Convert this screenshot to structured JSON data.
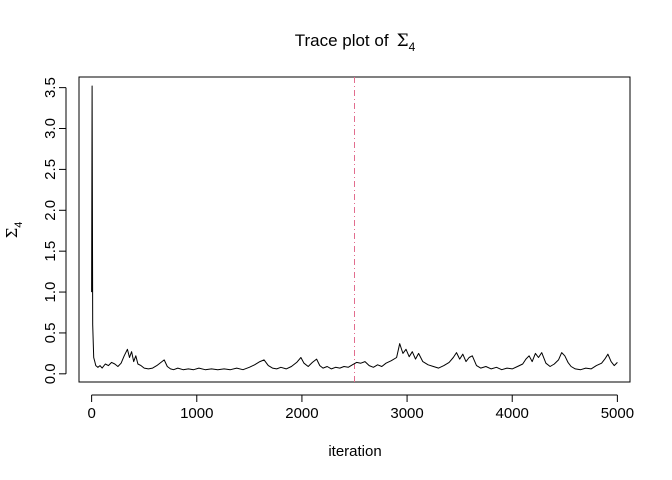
{
  "chart_data": {
    "type": "line",
    "title": "Trace plot of",
    "title_symbol": "Σ",
    "title_subscript": "4",
    "xlabel": "iteration",
    "ylabel_symbol": "Σ",
    "ylabel_subscript": "4",
    "xlim": [
      -120,
      5120
    ],
    "ylim": [
      -0.1,
      3.63
    ],
    "xticks": [
      0,
      1000,
      2000,
      3000,
      4000,
      5000
    ],
    "xtick_labels": [
      "0",
      "1000",
      "2000",
      "3000",
      "4000",
      "5000"
    ],
    "yticks": [
      0.0,
      0.5,
      1.0,
      1.5,
      2.0,
      2.5,
      3.0,
      3.5
    ],
    "ytick_labels": [
      "0.0",
      "0.5",
      "1.0",
      "1.5",
      "2.0",
      "2.5",
      "3.0",
      "3.5"
    ],
    "grid": false,
    "line_color": "#000000",
    "vline": {
      "x": 2500,
      "color": "#e26d8e",
      "style": "dashdot"
    },
    "series": [
      {
        "x": [
          0,
          5,
          10,
          20,
          30,
          40,
          50,
          60,
          80,
          100,
          130,
          160,
          190,
          220,
          250,
          280,
          310,
          340,
          360,
          380,
          400,
          420,
          440,
          470,
          500,
          540,
          580,
          620,
          660,
          690,
          720,
          750,
          780,
          820,
          870,
          920,
          970,
          1020,
          1080,
          1140,
          1200,
          1260,
          1320,
          1380,
          1440,
          1500,
          1550,
          1600,
          1640,
          1680,
          1720,
          1760,
          1800,
          1850,
          1900,
          1950,
          1990,
          2020,
          2060,
          2100,
          2140,
          2170,
          2200,
          2240,
          2280,
          2320,
          2360,
          2400,
          2440,
          2480,
          2520,
          2560,
          2600,
          2640,
          2680,
          2720,
          2760,
          2800,
          2850,
          2900,
          2930,
          2960,
          2990,
          3020,
          3050,
          3080,
          3110,
          3150,
          3200,
          3250,
          3300,
          3350,
          3400,
          3440,
          3470,
          3500,
          3530,
          3560,
          3590,
          3620,
          3660,
          3700,
          3750,
          3800,
          3850,
          3900,
          3950,
          4000,
          4050,
          4100,
          4130,
          4160,
          4190,
          4220,
          4250,
          4280,
          4320,
          4360,
          4400,
          4440,
          4470,
          4500,
          4530,
          4560,
          4600,
          4650,
          4700,
          4750,
          4800,
          4850,
          4880,
          4910,
          4940,
          4970,
          5000
        ],
        "y": [
          1.0,
          3.52,
          0.6,
          0.2,
          0.15,
          0.1,
          0.09,
          0.08,
          0.1,
          0.07,
          0.12,
          0.1,
          0.14,
          0.12,
          0.09,
          0.13,
          0.22,
          0.3,
          0.2,
          0.27,
          0.15,
          0.22,
          0.12,
          0.1,
          0.07,
          0.06,
          0.07,
          0.1,
          0.14,
          0.17,
          0.09,
          0.06,
          0.05,
          0.07,
          0.05,
          0.06,
          0.05,
          0.07,
          0.05,
          0.06,
          0.05,
          0.06,
          0.05,
          0.07,
          0.05,
          0.08,
          0.11,
          0.15,
          0.17,
          0.1,
          0.07,
          0.06,
          0.08,
          0.06,
          0.09,
          0.14,
          0.2,
          0.13,
          0.09,
          0.14,
          0.18,
          0.1,
          0.07,
          0.09,
          0.06,
          0.08,
          0.07,
          0.09,
          0.08,
          0.11,
          0.14,
          0.13,
          0.15,
          0.1,
          0.08,
          0.11,
          0.09,
          0.13,
          0.16,
          0.2,
          0.37,
          0.25,
          0.3,
          0.21,
          0.27,
          0.18,
          0.25,
          0.15,
          0.11,
          0.09,
          0.07,
          0.1,
          0.14,
          0.2,
          0.26,
          0.18,
          0.24,
          0.15,
          0.2,
          0.22,
          0.1,
          0.07,
          0.09,
          0.06,
          0.08,
          0.05,
          0.07,
          0.06,
          0.09,
          0.12,
          0.18,
          0.22,
          0.15,
          0.25,
          0.2,
          0.26,
          0.13,
          0.09,
          0.12,
          0.17,
          0.26,
          0.22,
          0.14,
          0.09,
          0.06,
          0.05,
          0.07,
          0.06,
          0.1,
          0.13,
          0.18,
          0.24,
          0.15,
          0.1,
          0.14
        ]
      }
    ]
  }
}
